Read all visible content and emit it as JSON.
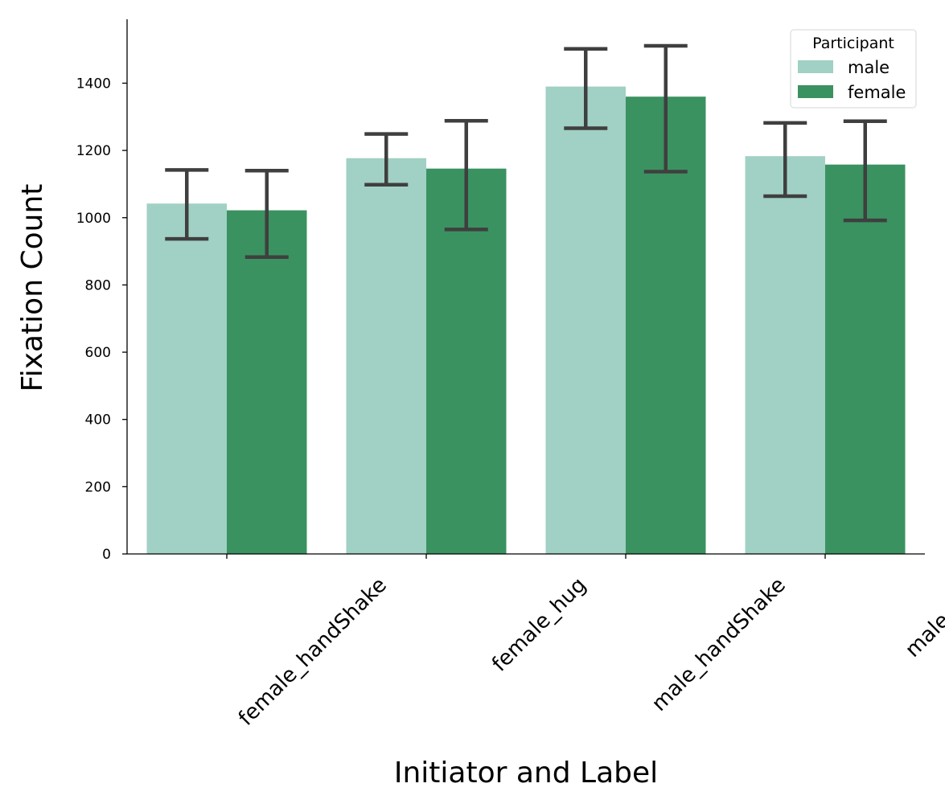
{
  "chart_data": {
    "type": "bar",
    "xlabel": "Initiator and Label",
    "ylabel": "Fixation Count",
    "categories": [
      "female_handShake",
      "female_hug",
      "male_handShake",
      "male_hug"
    ],
    "ylim": [
      0,
      1590
    ],
    "yticks": [
      0,
      200,
      400,
      600,
      800,
      1000,
      1200,
      1400
    ],
    "legend": {
      "title": "Participant",
      "position": "top-right"
    },
    "grid": false,
    "series": [
      {
        "name": "male",
        "color": "#a1d0c4",
        "values": [
          1042,
          1177,
          1390,
          1183
        ],
        "error_low": [
          937,
          1098,
          1266,
          1064
        ],
        "error_high": [
          1142,
          1249,
          1502,
          1282
        ]
      },
      {
        "name": "female",
        "color": "#3a9260",
        "values": [
          1022,
          1146,
          1360,
          1158
        ],
        "error_low": [
          883,
          965,
          1137,
          992
        ],
        "error_high": [
          1140,
          1288,
          1511,
          1287
        ]
      }
    ],
    "error_bar_color": "#3f3f3f"
  }
}
